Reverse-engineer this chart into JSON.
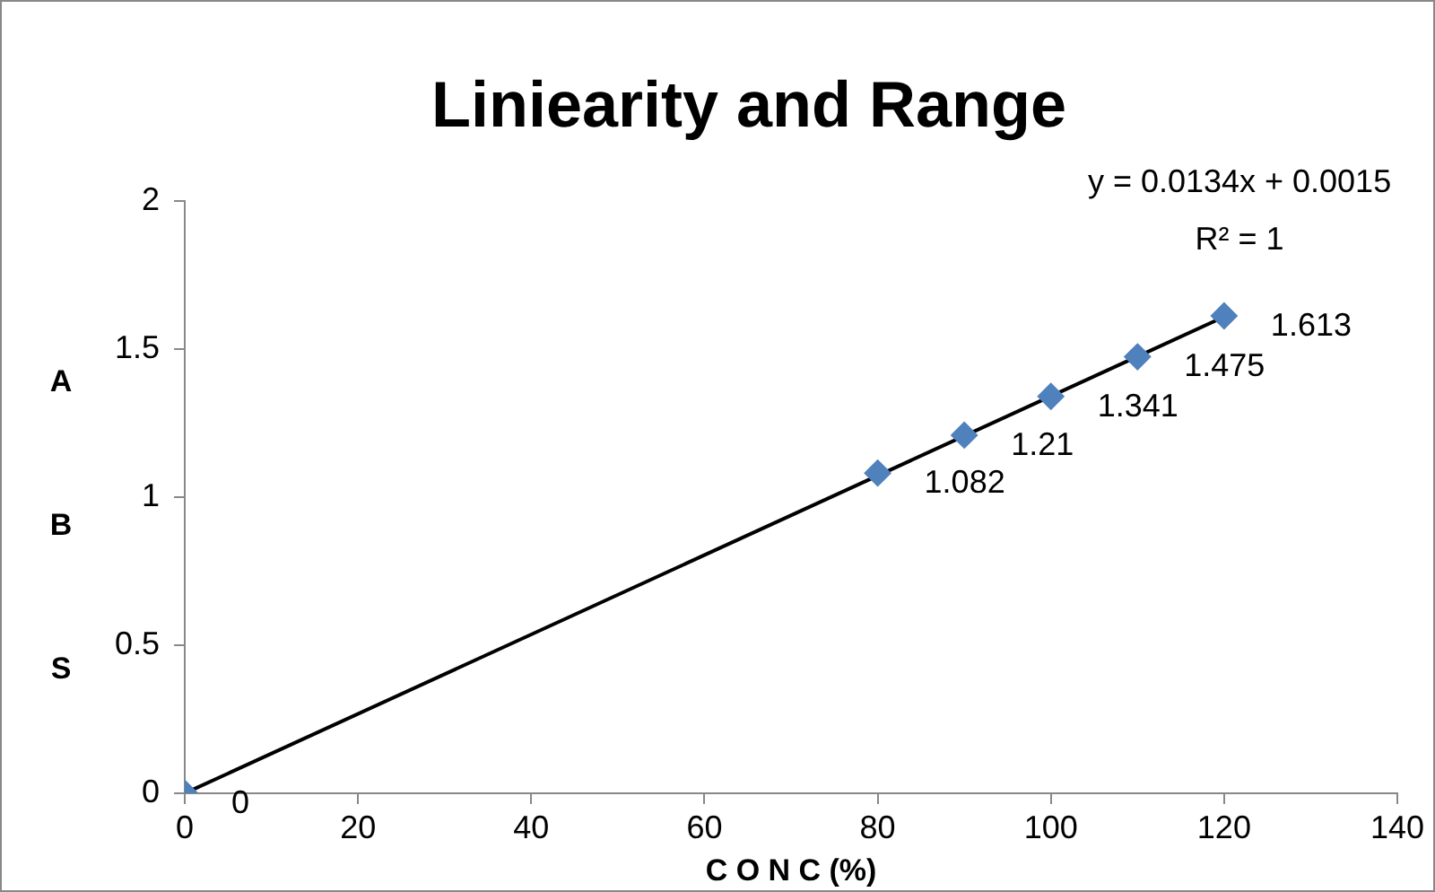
{
  "chart_data": {
    "type": "scatter",
    "title": "Liniearity and Range",
    "xlabel": "C O N C (%)",
    "ylabel": "ABS",
    "x": [
      0,
      80,
      90,
      100,
      110,
      120
    ],
    "series": [
      {
        "type": "scatter",
        "color": "#4f81bd",
        "marker": "diamond",
        "values": [
          0,
          1.082,
          1.21,
          1.341,
          1.475,
          1.613
        ],
        "value_labels": [
          "0",
          "1.082",
          "1.21",
          "1.341",
          "1.475",
          "1.613"
        ]
      },
      {
        "type": "line",
        "color": "#000000",
        "marker": "none",
        "x": [
          0,
          120
        ],
        "values": [
          0,
          1.61
        ]
      }
    ],
    "xlim": [
      0,
      140
    ],
    "xticks": [
      0,
      20,
      40,
      60,
      80,
      100,
      120,
      140
    ],
    "ylim": [
      0,
      2
    ],
    "yticks": [
      0,
      0.5,
      1,
      1.5,
      2
    ],
    "annotations": [
      "y = 0.0134x + 0.0015",
      "R² = 1"
    ],
    "grid": false,
    "legend": false,
    "line_style": "solid"
  }
}
